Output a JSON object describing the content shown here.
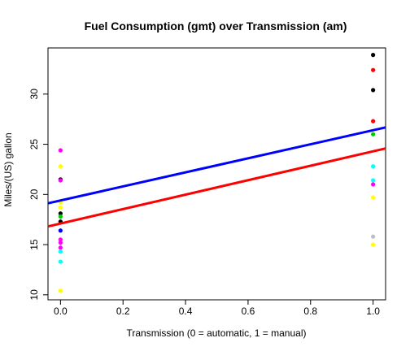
{
  "chart_data": {
    "type": "scatter",
    "title": "Fuel Consumption (gmt) over Transmission (am)",
    "xlabel": "Transmission (0 = automatic, 1 = manual)",
    "ylabel": "Miles/(US) gallon",
    "xlim": [
      -0.04,
      1.04
    ],
    "ylim": [
      9.5,
      34.6
    ],
    "xticks": [
      "0.0",
      "0.2",
      "0.4",
      "0.6",
      "0.8",
      "1.0"
    ],
    "yticks": [
      "10",
      "15",
      "20",
      "25",
      "30"
    ],
    "grid": false,
    "legend": "none",
    "points": [
      {
        "x": 0,
        "y": 24.4,
        "color": "#ff00ff"
      },
      {
        "x": 0,
        "y": 22.8,
        "color": "#ffff00"
      },
      {
        "x": 0,
        "y": 21.5,
        "color": "#000000"
      },
      {
        "x": 0,
        "y": 21.4,
        "color": "#ff00ff"
      },
      {
        "x": 0,
        "y": 19.2,
        "color": "#ffff00"
      },
      {
        "x": 0,
        "y": 18.7,
        "color": "#ffff00"
      },
      {
        "x": 0,
        "y": 18.1,
        "color": "#000000"
      },
      {
        "x": 0,
        "y": 17.8,
        "color": "#00cd00"
      },
      {
        "x": 0,
        "y": 17.3,
        "color": "#000000"
      },
      {
        "x": 0,
        "y": 16.4,
        "color": "#0000ff"
      },
      {
        "x": 0,
        "y": 15.5,
        "color": "#ff00ff"
      },
      {
        "x": 0,
        "y": 15.2,
        "color": "#ff00ff"
      },
      {
        "x": 0,
        "y": 14.7,
        "color": "#ff00ff"
      },
      {
        "x": 0,
        "y": 14.3,
        "color": "#00ffff"
      },
      {
        "x": 0,
        "y": 13.3,
        "color": "#00ffff"
      },
      {
        "x": 0,
        "y": 10.4,
        "color": "#ffff00"
      },
      {
        "x": 1,
        "y": 33.9,
        "color": "#000000"
      },
      {
        "x": 1,
        "y": 32.4,
        "color": "#ff0000"
      },
      {
        "x": 1,
        "y": 30.4,
        "color": "#000000"
      },
      {
        "x": 1,
        "y": 27.3,
        "color": "#ff0000"
      },
      {
        "x": 1,
        "y": 26.0,
        "color": "#00cd00"
      },
      {
        "x": 1,
        "y": 22.8,
        "color": "#00ffff"
      },
      {
        "x": 1,
        "y": 21.4,
        "color": "#00ffff"
      },
      {
        "x": 1,
        "y": 21.0,
        "color": "#ff00ff"
      },
      {
        "x": 1,
        "y": 19.7,
        "color": "#ffff00"
      },
      {
        "x": 1,
        "y": 15.8,
        "color": "#bebebe"
      },
      {
        "x": 1,
        "y": 15.0,
        "color": "#ffff00"
      }
    ],
    "lines": [
      {
        "color": "#0000ff",
        "intercept": 19.4,
        "slope": 7.0
      },
      {
        "color": "#ff0000",
        "intercept": 17.1,
        "slope": 7.2
      }
    ]
  }
}
